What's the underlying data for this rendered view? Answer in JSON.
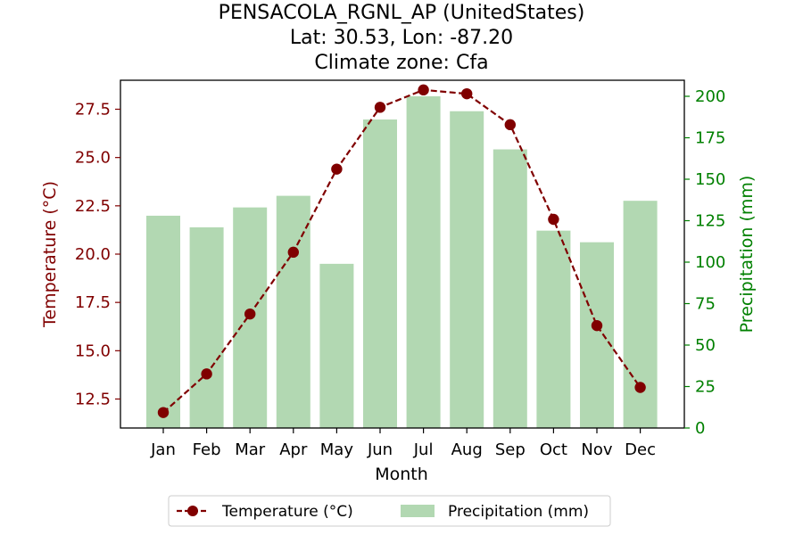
{
  "chart_data": {
    "type": "bar+line",
    "title_lines": [
      "PENSACOLA_RGNL_AP (UnitedStates)",
      "Lat: 30.53, Lon: -87.20",
      "Climate zone: Cfa"
    ],
    "xlabel": "Month",
    "ylabel_left": "Temperature (°C)",
    "ylabel_right": "Precipitation (mm)",
    "categories": [
      "Jan",
      "Feb",
      "Mar",
      "Apr",
      "May",
      "Jun",
      "Jul",
      "Aug",
      "Sep",
      "Oct",
      "Nov",
      "Dec"
    ],
    "temperature": {
      "name": "Temperature (°C)",
      "values": [
        11.8,
        13.8,
        16.9,
        20.1,
        24.4,
        27.6,
        28.5,
        28.3,
        26.7,
        21.8,
        16.3,
        13.1
      ],
      "ylim": [
        11.0,
        29.0
      ],
      "ticks": [
        12.5,
        15.0,
        17.5,
        20.0,
        22.5,
        25.0,
        27.5
      ],
      "tick_labels": [
        "12.5",
        "15.0",
        "17.5",
        "20.0",
        "22.5",
        "25.0",
        "27.5"
      ]
    },
    "precipitation": {
      "name": "Precipitation (mm)",
      "values": [
        128,
        121,
        133,
        140,
        99,
        186,
        200,
        191,
        168,
        119,
        112,
        137
      ],
      "ylim": [
        0,
        200
      ],
      "ticks": [
        0,
        25,
        50,
        75,
        100,
        125,
        150,
        175,
        200
      ],
      "tick_labels": [
        "0",
        "25",
        "50",
        "75",
        "100",
        "125",
        "150",
        "175",
        "200"
      ]
    },
    "legend_position": "bottom-center",
    "grid": false
  },
  "colors": {
    "temperature": "#800000",
    "precipitation_bar": "#b2d8b2",
    "right_axis": "#008000",
    "axis": "#000000"
  }
}
